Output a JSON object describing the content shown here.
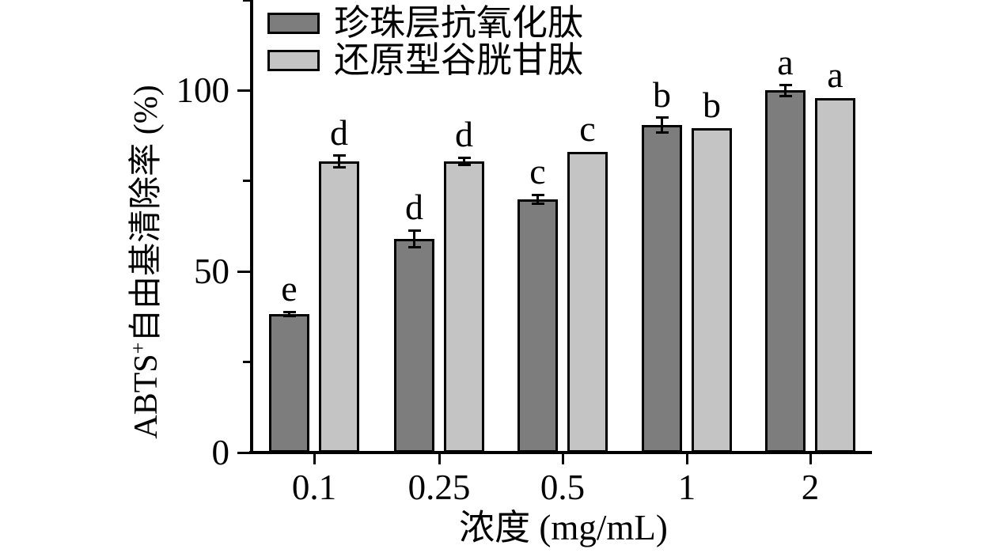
{
  "chart_data": {
    "type": "bar",
    "title": "",
    "xlabel": "浓度 (mg/mL)",
    "ylabel": "ABTS⁺自由基清除率 (%)",
    "ylabel_parts": {
      "pre": "ABTS",
      "sup": "+",
      "post": "自由基清除率 (%)"
    },
    "categories": [
      "0.1",
      "0.25",
      "0.5",
      "1",
      "2"
    ],
    "series": [
      {
        "name": "珍珠层抗氧化肽",
        "color": "#7d7d7d",
        "values": [
          38.3,
          59.0,
          70.0,
          90.5,
          100.0
        ],
        "errors": [
          0.5,
          2.4,
          1.2,
          2.0,
          1.5
        ],
        "letters": [
          "e",
          "d",
          "c",
          "b",
          "a"
        ]
      },
      {
        "name": "还原型谷胱甘肽",
        "color": "#c4c4c4",
        "values": [
          80.4,
          80.5,
          83.0,
          89.5,
          98.0
        ],
        "errors": [
          1.6,
          1.0,
          0,
          0,
          0
        ],
        "letters": [
          "d",
          "d",
          "c",
          "b",
          "a"
        ]
      }
    ],
    "y_axis": {
      "min": 0,
      "max": 125,
      "major_ticks": [
        0,
        50,
        100
      ],
      "tick_labels": [
        "0",
        "50",
        "100"
      ],
      "minor_ticks": [
        25,
        75,
        125
      ]
    },
    "legend_position": "top-left-inside",
    "grid": false,
    "bar_outline_color": "#000000",
    "background": "#ffffff"
  }
}
